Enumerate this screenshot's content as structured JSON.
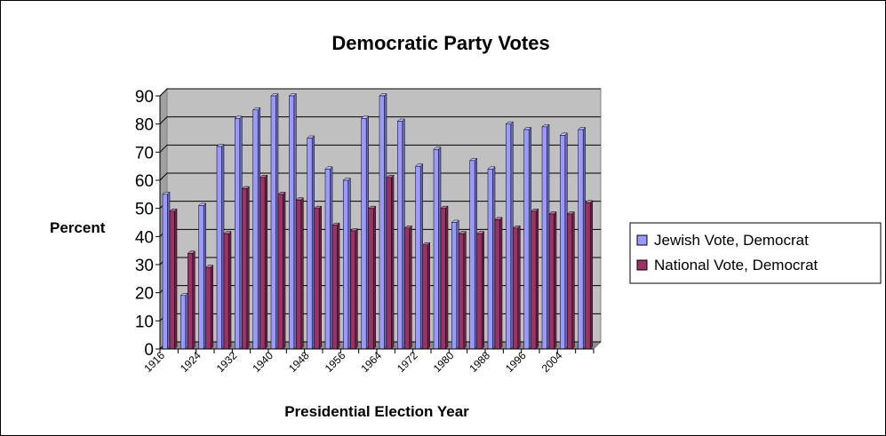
{
  "chart_data": {
    "type": "bar",
    "title": "Democratic Party Votes",
    "xlabel": "Presidential Election Year",
    "ylabel": "Percent",
    "ylim": [
      0,
      90
    ],
    "yticks": [
      0,
      10,
      20,
      30,
      40,
      50,
      60,
      70,
      80,
      90
    ],
    "categories": [
      "1916",
      "1920",
      "1924",
      "1928",
      "1932",
      "1936",
      "1940",
      "1944",
      "1948",
      "1952",
      "1956",
      "1960",
      "1964",
      "1968",
      "1972",
      "1976",
      "1980",
      "1984",
      "1988",
      "1992",
      "1996",
      "2000",
      "2004",
      "2008"
    ],
    "category_labels": [
      "1916",
      "",
      "1924",
      "",
      "1932",
      "",
      "1940",
      "",
      "1948",
      "",
      "1956",
      "",
      "1964",
      "",
      "1972",
      "",
      "1980",
      "",
      "1988",
      "",
      "1996",
      "",
      "2004",
      ""
    ],
    "series": [
      {
        "name": "Jewish Vote, Democrat",
        "color": "#9999ff",
        "values": [
          55,
          19,
          51,
          72,
          82,
          85,
          90,
          90,
          75,
          64,
          60,
          82,
          90,
          81,
          65,
          71,
          45,
          67,
          64,
          80,
          78,
          79,
          76,
          78
        ]
      },
      {
        "name": "National Vote, Democrat",
        "color": "#993366",
        "values": [
          49,
          34,
          29,
          41,
          57,
          61,
          55,
          53,
          50,
          44,
          42,
          50,
          61,
          43,
          37,
          50,
          41,
          41,
          46,
          43,
          49,
          48,
          48,
          52
        ]
      }
    ],
    "grid": true,
    "plot_background": "#c0c0c0",
    "legend_position": "right"
  }
}
